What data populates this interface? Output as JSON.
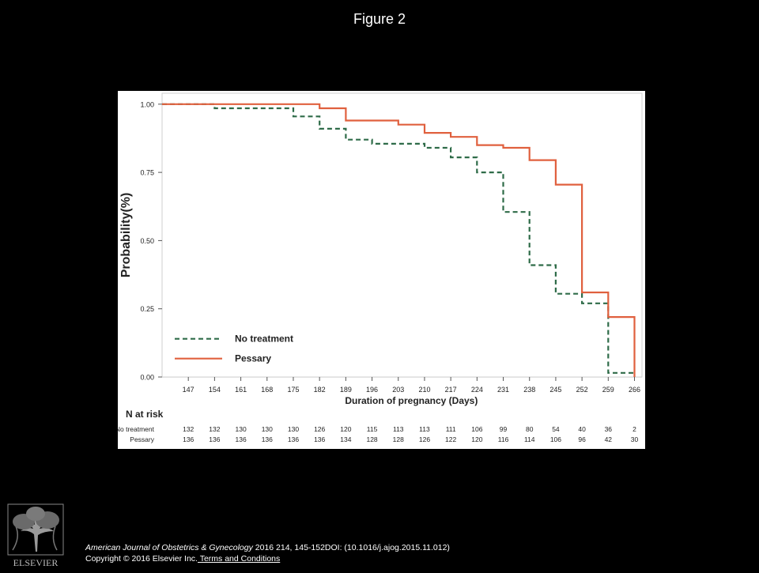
{
  "slide": {
    "title": "Figure 2"
  },
  "chart_data": {
    "type": "line",
    "step": true,
    "ylabel": "Probability(%)",
    "xlabel": "Duration of pregnancy (Days)",
    "yticks": [
      0,
      0.25,
      0.5,
      0.75,
      1
    ],
    "ytick_labels": [
      "0.00",
      "0.25",
      "0.50",
      "0.75",
      "1.00"
    ],
    "xticks": [
      147,
      154,
      161,
      168,
      175,
      182,
      189,
      196,
      203,
      210,
      217,
      224,
      231,
      238,
      245,
      252,
      259,
      266
    ],
    "xlim": [
      140,
      268
    ],
    "ylim": [
      0,
      1.04
    ],
    "grid": "horizontal",
    "legend_position": "bottom-left",
    "series": [
      {
        "name": "No treatment",
        "color": "#2e6b48",
        "dash": "dashed",
        "points": [
          [
            140,
            1.0
          ],
          [
            154,
            1.0
          ],
          [
            154,
            0.985
          ],
          [
            175,
            0.985
          ],
          [
            175,
            0.955
          ],
          [
            182,
            0.955
          ],
          [
            182,
            0.91
          ],
          [
            189,
            0.91
          ],
          [
            189,
            0.87
          ],
          [
            196,
            0.87
          ],
          [
            196,
            0.855
          ],
          [
            210,
            0.855
          ],
          [
            210,
            0.84
          ],
          [
            217,
            0.84
          ],
          [
            217,
            0.805
          ],
          [
            224,
            0.805
          ],
          [
            224,
            0.75
          ],
          [
            231,
            0.75
          ],
          [
            231,
            0.605
          ],
          [
            238,
            0.605
          ],
          [
            238,
            0.41
          ],
          [
            245,
            0.41
          ],
          [
            245,
            0.305
          ],
          [
            252,
            0.305
          ],
          [
            252,
            0.27
          ],
          [
            259,
            0.27
          ],
          [
            259,
            0.015
          ],
          [
            266,
            0.015
          ]
        ]
      },
      {
        "name": "Pessary",
        "color": "#e0603e",
        "dash": "solid",
        "points": [
          [
            140,
            1.0
          ],
          [
            182,
            1.0
          ],
          [
            182,
            0.985
          ],
          [
            189,
            0.985
          ],
          [
            189,
            0.94
          ],
          [
            203,
            0.94
          ],
          [
            203,
            0.925
          ],
          [
            210,
            0.925
          ],
          [
            210,
            0.895
          ],
          [
            217,
            0.895
          ],
          [
            217,
            0.88
          ],
          [
            224,
            0.88
          ],
          [
            224,
            0.85
          ],
          [
            231,
            0.85
          ],
          [
            231,
            0.84
          ],
          [
            238,
            0.84
          ],
          [
            238,
            0.795
          ],
          [
            245,
            0.795
          ],
          [
            245,
            0.705
          ],
          [
            252,
            0.705
          ],
          [
            252,
            0.31
          ],
          [
            259,
            0.31
          ],
          [
            259,
            0.22
          ],
          [
            266,
            0.22
          ],
          [
            266,
            0.0
          ]
        ]
      }
    ],
    "risk_table": {
      "title": "N at risk",
      "rows": [
        {
          "label": "No treatment",
          "values": [
            "132",
            "132",
            "130",
            "130",
            "130",
            "126",
            "120",
            "115",
            "113",
            "113",
            "111",
            "106",
            "99",
            "80",
            "54",
            "40",
            "36",
            "2"
          ]
        },
        {
          "label": "Pessary",
          "values": [
            "136",
            "136",
            "136",
            "136",
            "136",
            "136",
            "134",
            "128",
            "128",
            "126",
            "122",
            "120",
            "116",
            "114",
            "106",
            "96",
            "42",
            "30"
          ]
        }
      ]
    }
  },
  "citation": {
    "journal": "American Journal of Obstetrics & Gynecology",
    "details": " 2016 214, 145-152DOI: (10.1016/j.ajog.2015.11.012)",
    "copyright": "Copyright © 2016 Elsevier Inc.",
    "link_text": " Terms and Conditions"
  },
  "logo": {
    "text": "ELSEVIER"
  }
}
